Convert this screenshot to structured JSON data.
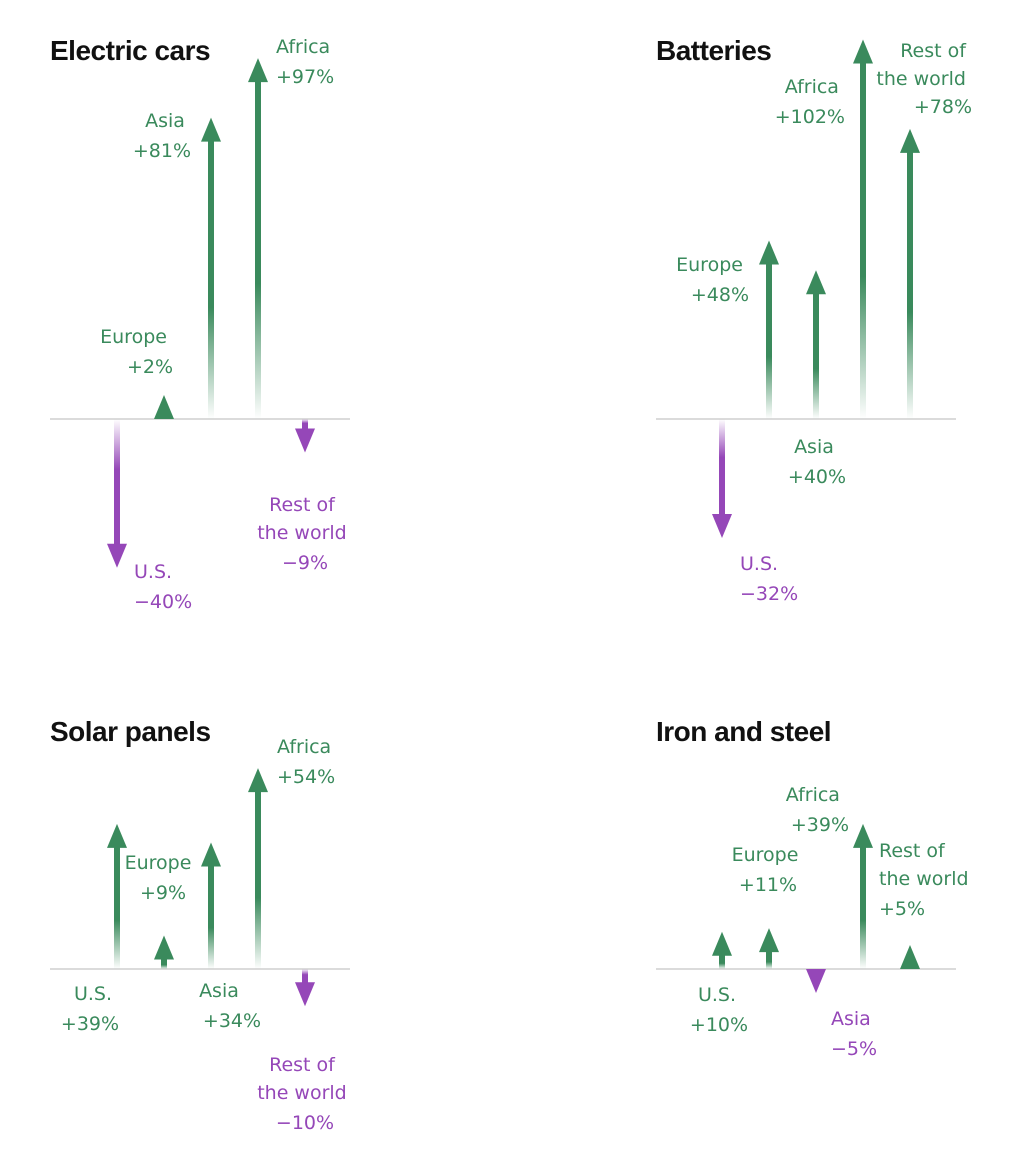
{
  "colors": {
    "increase": "#3a8a5c",
    "decrease": "#9547b8",
    "axis": "#cfcfcf"
  },
  "chart_data": [
    {
      "type": "bar",
      "title": "Electric cars",
      "categories": [
        "U.S.",
        "Europe",
        "Asia",
        "Africa",
        "Rest of the world"
      ],
      "values": [
        -40,
        2,
        81,
        97,
        -9
      ],
      "labels": [
        {
          "lines": [
            "U.S.",
            "−40%"
          ]
        },
        {
          "lines": [
            "Europe",
            "+2%"
          ]
        },
        {
          "lines": [
            "Asia",
            "+81%"
          ]
        },
        {
          "lines": [
            "Africa",
            "+97%"
          ]
        },
        {
          "lines": [
            "Rest of",
            "the world",
            "−9%"
          ]
        }
      ]
    },
    {
      "type": "bar",
      "title": "Batteries",
      "categories": [
        "U.S.",
        "Europe",
        "Asia",
        "Africa",
        "Rest of the world"
      ],
      "values": [
        -32,
        48,
        40,
        102,
        78
      ],
      "labels": [
        {
          "lines": [
            "U.S.",
            "−32%"
          ]
        },
        {
          "lines": [
            "Europe",
            "+48%"
          ]
        },
        {
          "lines": [
            "Asia",
            "+40%"
          ]
        },
        {
          "lines": [
            "Africa",
            "+102%"
          ]
        },
        {
          "lines": [
            "Rest of",
            "the world",
            "+78%"
          ]
        }
      ]
    },
    {
      "type": "bar",
      "title": "Solar panels",
      "categories": [
        "U.S.",
        "Europe",
        "Asia",
        "Africa",
        "Rest of the world"
      ],
      "values": [
        39,
        9,
        34,
        54,
        -10
      ],
      "labels": [
        {
          "lines": [
            "U.S.",
            "+39%"
          ]
        },
        {
          "lines": [
            "Europe",
            "+9%"
          ]
        },
        {
          "lines": [
            "Asia",
            "+34%"
          ]
        },
        {
          "lines": [
            "Africa",
            "+54%"
          ]
        },
        {
          "lines": [
            "Rest of",
            "the world",
            "−10%"
          ]
        }
      ]
    },
    {
      "type": "bar",
      "title": "Iron and steel",
      "categories": [
        "U.S.",
        "Europe",
        "Asia",
        "Africa",
        "Rest of the world"
      ],
      "values": [
        10,
        11,
        -5,
        39,
        5
      ],
      "labels": [
        {
          "lines": [
            "U.S.",
            "+10%"
          ]
        },
        {
          "lines": [
            "Europe",
            "+11%"
          ]
        },
        {
          "lines": [
            "Asia",
            "−5%"
          ]
        },
        {
          "lines": [
            "Africa",
            "+39%"
          ]
        },
        {
          "lines": [
            "Rest of",
            "the world",
            "+5%"
          ]
        }
      ]
    }
  ]
}
